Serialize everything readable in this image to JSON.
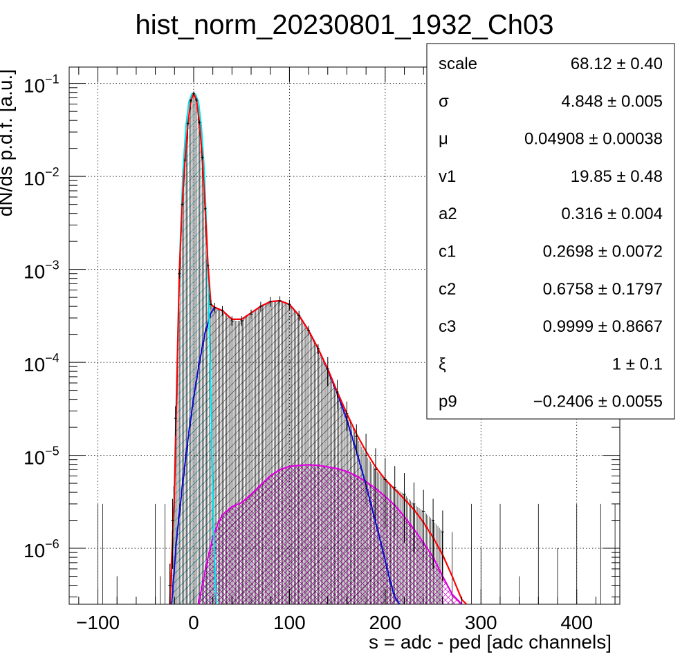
{
  "chart_data": {
    "type": "histogram",
    "title": "hist_norm_20230801_1932_Ch03",
    "xlabel": "s = adc - ped [adc channels]",
    "ylabel": "dN/ds p.d.f. [a.u.]",
    "xlim": [
      -130,
      445
    ],
    "ylim": [
      2.5e-07,
      0.15
    ],
    "yscale": "log",
    "grid": true,
    "x_ticks": [
      -100,
      0,
      100,
      200,
      300,
      400
    ],
    "x_tick_labels": [
      "−100",
      "0",
      "100",
      "200",
      "300",
      "400"
    ],
    "y_ticks": [
      {
        "value": 1e-06,
        "base": "10",
        "exp": "−6"
      },
      {
        "value": 1e-05,
        "base": "10",
        "exp": "−5"
      },
      {
        "value": 0.0001,
        "base": "10",
        "exp": "−4"
      },
      {
        "value": 0.001,
        "base": "10",
        "exp": "−3"
      },
      {
        "value": 0.01,
        "base": "10",
        "exp": "−2"
      },
      {
        "value": 0.1,
        "base": "10",
        "exp": "−1"
      }
    ],
    "data_points": [
      [
        -25,
        4e-07
      ],
      [
        -22,
        2e-06
      ],
      [
        -19,
        2.5e-05
      ],
      [
        -15,
        0.0009
      ],
      [
        -12,
        0.005
      ],
      [
        -9,
        0.015
      ],
      [
        -6,
        0.037
      ],
      [
        -3,
        0.065
      ],
      [
        0,
        0.078
      ],
      [
        3,
        0.066
      ],
      [
        6,
        0.038
      ],
      [
        9,
        0.016
      ],
      [
        12,
        0.0045
      ],
      [
        15,
        0.0011
      ],
      [
        18,
        0.00042
      ],
      [
        22,
        0.00039
      ],
      [
        30,
        0.00036
      ],
      [
        40,
        0.00028
      ],
      [
        50,
        0.00028
      ],
      [
        60,
        0.00033
      ],
      [
        70,
        0.0004
      ],
      [
        80,
        0.00045
      ],
      [
        90,
        0.00046
      ],
      [
        100,
        0.00042
      ],
      [
        110,
        0.00032
      ],
      [
        120,
        0.00022
      ],
      [
        130,
        0.00014
      ],
      [
        140,
        8.5e-05
      ],
      [
        150,
        4.8e-05
      ],
      [
        160,
        2.8e-05
      ],
      [
        170,
        1.6e-05
      ],
      [
        180,
        1e-05
      ],
      [
        190,
        7e-06
      ],
      [
        200,
        5.5e-06
      ],
      [
        210,
        4.5e-06
      ],
      [
        220,
        3.8e-06
      ],
      [
        230,
        3e-06
      ],
      [
        240,
        2.5e-06
      ],
      [
        250,
        2e-06
      ],
      [
        260,
        1.5e-06
      ]
    ],
    "series": [
      {
        "role": "total fit",
        "color": "#ff0000",
        "x": [
          -25,
          -20,
          -15,
          -12,
          -9,
          -6,
          -3,
          0,
          3,
          6,
          9,
          12,
          15,
          18,
          22,
          30,
          40,
          50,
          60,
          70,
          80,
          90,
          100,
          110,
          120,
          130,
          140,
          150,
          160,
          170,
          180,
          190,
          200,
          210,
          220,
          230,
          240,
          250,
          260,
          270,
          280,
          285
        ],
        "y": [
          2.5e-07,
          4e-06,
          0.0009,
          0.005,
          0.015,
          0.037,
          0.065,
          0.078,
          0.066,
          0.038,
          0.016,
          0.0045,
          0.0011,
          0.00042,
          0.00039,
          0.00036,
          0.00029,
          0.00029,
          0.00034,
          0.0004,
          0.00045,
          0.00046,
          0.00042,
          0.00032,
          0.00022,
          0.00014,
          8.5e-05,
          4.8e-05,
          2.8e-05,
          1.7e-05,
          1.1e-05,
          7.5e-06,
          5.5e-06,
          4.3e-06,
          3.4e-06,
          2.6e-06,
          1.9e-06,
          1.3e-06,
          8.5e-07,
          5e-07,
          2.8e-07,
          2.5e-07
        ]
      },
      {
        "role": "pedestal component",
        "color": "#00e5ee",
        "x": [
          -25,
          -21,
          -17,
          -14,
          -11,
          -8,
          -5,
          -2,
          0,
          2,
          5,
          8,
          11,
          14,
          17,
          19,
          21,
          23,
          24
        ],
        "y": [
          2.5e-07,
          2e-06,
          0.00012,
          0.0019,
          0.012,
          0.035,
          0.063,
          0.077,
          0.078,
          0.076,
          0.063,
          0.035,
          0.012,
          0.002,
          0.00013,
          1.2e-05,
          1.5e-06,
          3.5e-07,
          2.5e-07
        ]
      },
      {
        "role": "signal component",
        "color": "#1010c8",
        "x": [
          -23,
          -18,
          -12,
          -6,
          0,
          6,
          12,
          18,
          22,
          30,
          40,
          50,
          60,
          70,
          80,
          90,
          100,
          110,
          120,
          130,
          140,
          150,
          160,
          170,
          180,
          190,
          200,
          205,
          210,
          215
        ],
        "y": [
          2.5e-07,
          1.2e-06,
          4.5e-06,
          1.5e-05,
          4.2e-05,
          0.0001,
          0.00021,
          0.00034,
          0.00039,
          0.00036,
          0.00029,
          0.00029,
          0.00034,
          0.0004,
          0.00045,
          0.00046,
          0.00042,
          0.00032,
          0.00022,
          0.00014,
          8.3e-05,
          4.6e-05,
          2.4e-05,
          1.1e-05,
          4.8e-06,
          1.9e-06,
          7.5e-07,
          4.5e-07,
          3e-07,
          2.5e-07
        ]
      },
      {
        "role": "background component",
        "color": "#e000e0",
        "x": [
          5,
          10,
          15,
          20,
          25,
          30,
          40,
          50,
          60,
          70,
          80,
          90,
          100,
          110,
          120,
          130,
          140,
          150,
          160,
          170,
          180,
          190,
          200,
          210,
          220,
          230,
          240,
          250,
          260,
          270,
          280
        ],
        "y": [
          2.5e-07,
          4.5e-07,
          8e-07,
          1.3e-06,
          1.8e-06,
          2.3e-06,
          2.8e-06,
          3.1e-06,
          3.8e-06,
          4.8e-06,
          6e-06,
          7e-06,
          7.6e-06,
          7.8e-06,
          7.9e-06,
          7.8e-06,
          7.5e-06,
          7.2e-06,
          6.7e-06,
          6e-06,
          5.2e-06,
          4.4e-06,
          3.6e-06,
          2.9e-06,
          2.2e-06,
          1.6e-06,
          1.15e-06,
          8e-07,
          5e-07,
          3.2e-07,
          2.5e-07
        ]
      }
    ],
    "stats": [
      {
        "name": "scale",
        "value": "68.12 ± 0.40"
      },
      {
        "name": "σ",
        "value": "4.848 ± 0.005"
      },
      {
        "name": "μ",
        "value": "0.04908 ± 0.00038"
      },
      {
        "name": "v1",
        "value": "19.85 ± 0.48"
      },
      {
        "name": "a2",
        "value": "0.316 ± 0.004"
      },
      {
        "name": "c1",
        "value": "0.2698 ± 0.0072"
      },
      {
        "name": "c2",
        "value": "0.6758 ± 0.1797"
      },
      {
        "name": "c3",
        "value": "0.9999 ± 0.8667"
      },
      {
        "name": "ξ",
        "value": "1 ± 0.1"
      },
      {
        "name": "p9",
        "value": "−0.2406 ± 0.0055"
      }
    ]
  }
}
